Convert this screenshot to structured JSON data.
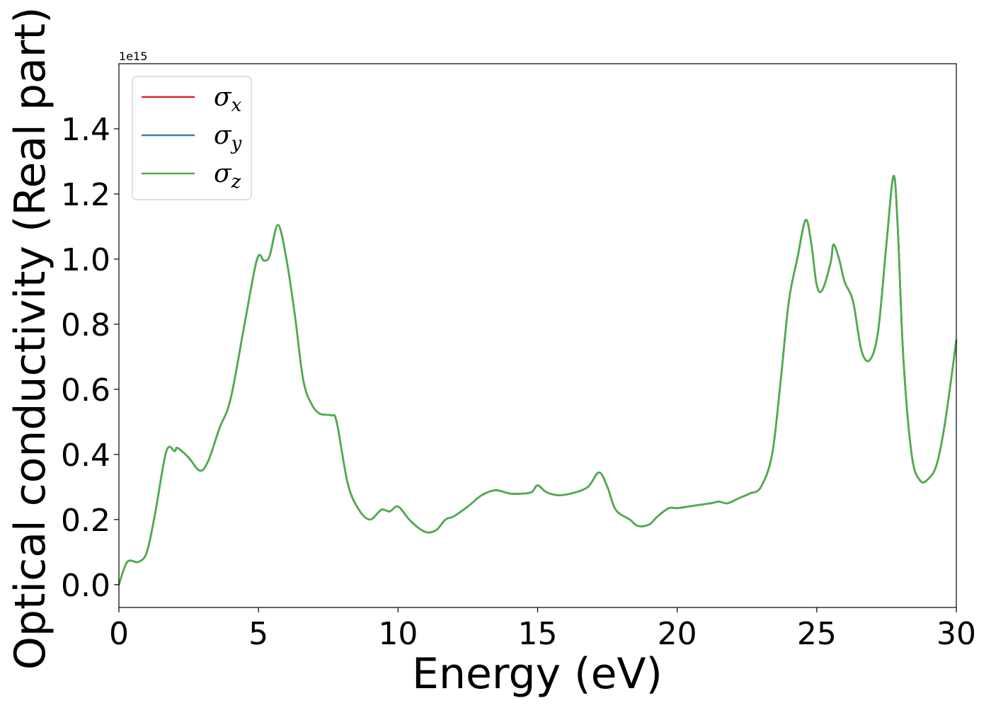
{
  "chart_data": {
    "type": "line",
    "xlabel": "Energy (eV)",
    "ylabel": "Optical conductivity (Real part)",
    "offset_text": "1e15",
    "y_multiplier": 1000000000000000.0,
    "xlim": [
      0,
      30
    ],
    "ylim": [
      -0.07,
      1.6
    ],
    "xticks": [
      0,
      5,
      10,
      15,
      20,
      25,
      30
    ],
    "xtick_labels": [
      "0",
      "5",
      "10",
      "15",
      "20",
      "25",
      "30"
    ],
    "yticks": [
      0.0,
      0.2,
      0.4,
      0.6,
      0.8,
      1.0,
      1.2,
      1.4
    ],
    "ytick_labels": [
      "0.0",
      "0.2",
      "0.4",
      "0.6",
      "0.8",
      "1.0",
      "1.2",
      "1.4"
    ],
    "grid": false,
    "legend_position": "top-left",
    "series": [
      {
        "name": "σx",
        "symbol": "σ",
        "subscript": "x",
        "color": "#d62728",
        "x": [
          0,
          0.3,
          0.7,
          1.0,
          1.3,
          1.7,
          2.0,
          2.1,
          2.5,
          2.9,
          3.2,
          3.6,
          4.0,
          4.5,
          4.95,
          5.2,
          5.4,
          5.7,
          6.0,
          6.3,
          6.6,
          6.9,
          7.2,
          7.6,
          7.8,
          8.2,
          8.6,
          9.0,
          9.4,
          9.7,
          10.0,
          10.4,
          10.8,
          11.1,
          11.4,
          11.7,
          12.0,
          12.5,
          13.0,
          13.5,
          14.0,
          14.5,
          14.8,
          15.0,
          15.3,
          15.7,
          16.2,
          16.8,
          17.2,
          17.5,
          17.8,
          18.3,
          18.6,
          19.0,
          19.3,
          19.7,
          20.0,
          20.4,
          20.8,
          21.2,
          21.5,
          21.8,
          22.2,
          22.6,
          23.0,
          23.4,
          23.7,
          24.0,
          24.3,
          24.6,
          24.8,
          25.0,
          25.2,
          25.5,
          25.6,
          25.8,
          26.0,
          26.3,
          26.6,
          26.9,
          27.2,
          27.5,
          27.75,
          27.9,
          28.1,
          28.4,
          28.7,
          29.0,
          29.3,
          29.6,
          30.0
        ],
        "values": [
          0.0,
          0.07,
          0.07,
          0.1,
          0.22,
          0.41,
          0.41,
          0.42,
          0.39,
          0.35,
          0.38,
          0.48,
          0.57,
          0.8,
          1.0,
          0.995,
          1.01,
          1.105,
          1.0,
          0.83,
          0.63,
          0.555,
          0.525,
          0.52,
          0.5,
          0.31,
          0.23,
          0.2,
          0.23,
          0.225,
          0.24,
          0.2,
          0.17,
          0.16,
          0.17,
          0.2,
          0.21,
          0.24,
          0.275,
          0.29,
          0.28,
          0.28,
          0.285,
          0.305,
          0.285,
          0.275,
          0.28,
          0.3,
          0.345,
          0.3,
          0.23,
          0.2,
          0.18,
          0.185,
          0.21,
          0.235,
          0.235,
          0.24,
          0.245,
          0.25,
          0.255,
          0.25,
          0.265,
          0.28,
          0.3,
          0.4,
          0.62,
          0.87,
          1.0,
          1.12,
          1.05,
          0.92,
          0.905,
          0.99,
          1.045,
          1.0,
          0.93,
          0.87,
          0.72,
          0.69,
          0.78,
          1.05,
          1.255,
          1.1,
          0.7,
          0.4,
          0.32,
          0.325,
          0.37,
          0.5,
          0.75
        ]
      },
      {
        "name": "σy",
        "symbol": "σ",
        "subscript": "y",
        "color": "#377eb8",
        "x": [
          0,
          0.3,
          0.7,
          1.0,
          1.3,
          1.7,
          2.0,
          2.1,
          2.5,
          2.9,
          3.2,
          3.6,
          4.0,
          4.5,
          4.95,
          5.2,
          5.4,
          5.7,
          6.0,
          6.3,
          6.6,
          6.9,
          7.2,
          7.6,
          7.8,
          8.2,
          8.6,
          9.0,
          9.4,
          9.7,
          10.0,
          10.4,
          10.8,
          11.1,
          11.4,
          11.7,
          12.0,
          12.5,
          13.0,
          13.5,
          14.0,
          14.5,
          14.8,
          15.0,
          15.3,
          15.7,
          16.2,
          16.8,
          17.2,
          17.5,
          17.8,
          18.3,
          18.6,
          19.0,
          19.3,
          19.7,
          20.0,
          20.4,
          20.8,
          21.2,
          21.5,
          21.8,
          22.2,
          22.6,
          23.0,
          23.4,
          23.7,
          24.0,
          24.3,
          24.6,
          24.8,
          25.0,
          25.2,
          25.5,
          25.6,
          25.8,
          26.0,
          26.3,
          26.6,
          26.9,
          27.2,
          27.5,
          27.75,
          27.9,
          28.1,
          28.4,
          28.7,
          29.0,
          29.3,
          29.6,
          30.0
        ],
        "values": [
          0.0,
          0.07,
          0.07,
          0.1,
          0.22,
          0.41,
          0.41,
          0.42,
          0.39,
          0.35,
          0.38,
          0.48,
          0.57,
          0.8,
          1.0,
          0.995,
          1.01,
          1.105,
          1.0,
          0.83,
          0.63,
          0.555,
          0.525,
          0.52,
          0.5,
          0.31,
          0.23,
          0.2,
          0.23,
          0.225,
          0.24,
          0.2,
          0.17,
          0.16,
          0.17,
          0.2,
          0.21,
          0.24,
          0.275,
          0.29,
          0.28,
          0.28,
          0.285,
          0.305,
          0.285,
          0.275,
          0.28,
          0.3,
          0.345,
          0.3,
          0.23,
          0.2,
          0.18,
          0.185,
          0.21,
          0.235,
          0.235,
          0.24,
          0.245,
          0.25,
          0.255,
          0.25,
          0.265,
          0.28,
          0.3,
          0.4,
          0.62,
          0.87,
          1.0,
          1.12,
          1.05,
          0.92,
          0.905,
          0.99,
          1.045,
          1.0,
          0.93,
          0.87,
          0.72,
          0.69,
          0.78,
          1.05,
          1.255,
          1.1,
          0.7,
          0.4,
          0.32,
          0.325,
          0.37,
          0.5,
          0.75
        ]
      },
      {
        "name": "σz",
        "symbol": "σ",
        "subscript": "z",
        "color": "#4daf4a",
        "x": [
          0,
          0.3,
          0.7,
          1.0,
          1.3,
          1.7,
          2.0,
          2.1,
          2.5,
          2.9,
          3.2,
          3.6,
          4.0,
          4.5,
          4.95,
          5.2,
          5.4,
          5.7,
          6.0,
          6.3,
          6.6,
          6.9,
          7.2,
          7.6,
          7.8,
          8.2,
          8.6,
          9.0,
          9.4,
          9.7,
          10.0,
          10.4,
          10.8,
          11.1,
          11.4,
          11.7,
          12.0,
          12.5,
          13.0,
          13.5,
          14.0,
          14.5,
          14.8,
          15.0,
          15.3,
          15.7,
          16.2,
          16.8,
          17.2,
          17.5,
          17.8,
          18.3,
          18.6,
          19.0,
          19.3,
          19.7,
          20.0,
          20.4,
          20.8,
          21.2,
          21.5,
          21.8,
          22.2,
          22.6,
          23.0,
          23.4,
          23.7,
          24.0,
          24.3,
          24.6,
          24.8,
          25.0,
          25.2,
          25.5,
          25.6,
          25.8,
          26.0,
          26.3,
          26.6,
          26.9,
          27.2,
          27.5,
          27.75,
          27.9,
          28.1,
          28.4,
          28.7,
          29.0,
          29.3,
          29.6,
          30.0
        ],
        "values": [
          0.0,
          0.07,
          0.07,
          0.1,
          0.22,
          0.41,
          0.41,
          0.42,
          0.39,
          0.35,
          0.38,
          0.48,
          0.57,
          0.8,
          1.0,
          0.995,
          1.01,
          1.105,
          1.0,
          0.83,
          0.63,
          0.555,
          0.525,
          0.52,
          0.5,
          0.31,
          0.23,
          0.2,
          0.23,
          0.225,
          0.24,
          0.2,
          0.17,
          0.16,
          0.17,
          0.2,
          0.21,
          0.24,
          0.275,
          0.29,
          0.28,
          0.28,
          0.285,
          0.305,
          0.285,
          0.275,
          0.28,
          0.3,
          0.345,
          0.3,
          0.23,
          0.2,
          0.18,
          0.185,
          0.21,
          0.235,
          0.235,
          0.24,
          0.245,
          0.25,
          0.255,
          0.25,
          0.265,
          0.28,
          0.3,
          0.4,
          0.62,
          0.87,
          1.0,
          1.12,
          1.05,
          0.92,
          0.905,
          0.99,
          1.045,
          1.0,
          0.93,
          0.87,
          0.72,
          0.69,
          0.78,
          1.05,
          1.255,
          1.1,
          0.7,
          0.4,
          0.32,
          0.325,
          0.37,
          0.5,
          0.75
        ]
      }
    ]
  }
}
